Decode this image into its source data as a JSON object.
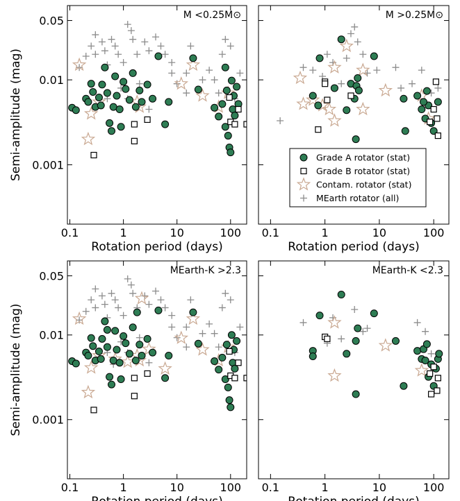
{
  "chart_data": [
    {
      "type": "scatter",
      "annotation": "M <0.25M⊙",
      "xlabel": "Rotation period (days)",
      "ylabel": "Semi-amplitude (mag)",
      "xscale": "log",
      "yscale": "log",
      "xlim": [
        0.09,
        200
      ],
      "ylim": [
        0.0002,
        0.075
      ],
      "xticks": [
        0.1,
        1,
        10,
        100
      ],
      "yticks": [
        0.001,
        0.01,
        0.05
      ],
      "ytick_labels": true,
      "series": [
        {
          "marker": "circle",
          "color": "#2e7d54",
          "x": [
            0.11,
            0.13,
            0.2,
            0.22,
            0.25,
            0.27,
            0.3,
            0.35,
            0.38,
            0.4,
            0.45,
            0.5,
            0.55,
            0.6,
            0.65,
            0.7,
            0.75,
            0.85,
            0.9,
            1.0,
            1.1,
            1.3,
            1.5,
            1.7,
            2,
            2.2,
            2.8,
            3.5,
            4.5,
            6,
            7,
            20,
            25,
            50,
            60,
            70,
            80,
            85,
            90,
            95,
            100,
            105,
            110,
            115,
            120,
            130,
            140,
            80
          ],
          "values": [
            0.0047,
            0.0044,
            0.006,
            0.0055,
            0.009,
            0.0072,
            0.0048,
            0.0062,
            0.005,
            0.0088,
            0.014,
            0.007,
            0.0031,
            0.0025,
            0.0048,
            0.011,
            0.0065,
            0.0045,
            0.0028,
            0.0095,
            0.0078,
            0.0058,
            0.012,
            0.0048,
            0.0075,
            0.0055,
            0.0088,
            0.006,
            0.019,
            0.003,
            0.0055,
            0.018,
            0.0077,
            0.0047,
            0.0037,
            0.0052,
            0.0028,
            0.0075,
            0.0022,
            0.0016,
            0.0014,
            0.0098,
            0.0045,
            0.0065,
            0.0038,
            0.0083,
            0.0052,
            0.014
          ]
        },
        {
          "marker": "square",
          "color": "#000000",
          "x": [
            0.28,
            1.6,
            1.6,
            2.8,
            95,
            100,
            120,
            140,
            200
          ],
          "values": [
            0.0013,
            0.0019,
            0.003,
            0.0034,
            0.0062,
            0.0032,
            0.003,
            0.0045,
            0.003
          ]
        },
        {
          "marker": "star",
          "color": "#c9a891",
          "x": [
            0.15,
            0.22,
            0.25,
            0.35,
            1.8,
            2,
            12,
            20,
            30,
            60,
            90
          ],
          "values": [
            0.015,
            0.002,
            0.004,
            0.0055,
            0.0055,
            0.0048,
            0.009,
            0.015,
            0.0065,
            0.0048,
            0.007
          ]
        },
        {
          "marker": "plus",
          "color": "#8c8c8c",
          "x": [
            0.15,
            0.2,
            0.25,
            0.3,
            0.3,
            0.4,
            0.45,
            0.5,
            0.6,
            0.7,
            0.8,
            1,
            1.2,
            1.4,
            1.5,
            1.8,
            2.5,
            3,
            4,
            5,
            6,
            8,
            10,
            15,
            18,
            30,
            40,
            50,
            70,
            80,
            100,
            0.5,
            0.9,
            1.2,
            2,
            3,
            8,
            15,
            60,
            120,
            150
          ],
          "values": [
            0.014,
            0.019,
            0.025,
            0.02,
            0.034,
            0.028,
            0.022,
            0.015,
            0.03,
            0.025,
            0.02,
            0.016,
            0.045,
            0.038,
            0.03,
            0.02,
            0.028,
            0.022,
            0.032,
            0.025,
            0.02,
            0.016,
            0.009,
            0.012,
            0.025,
            0.01,
            0.013,
            0.01,
            0.02,
            0.03,
            0.025,
            0.006,
            0.008,
            0.006,
            0.009,
            0.0045,
            0.012,
            0.007,
            0.007,
            0.006,
            0.012
          ]
        }
      ]
    },
    {
      "type": "scatter",
      "annotation": "M >0.25M⊙",
      "xlabel": "Rotation period (days)",
      "xscale": "log",
      "yscale": "log",
      "xlim": [
        0.06,
        190
      ],
      "ylim": [
        0.0002,
        0.075
      ],
      "xticks": [
        0.1,
        1,
        10,
        100
      ],
      "yticks": [
        0.001,
        0.01,
        0.05
      ],
      "ytick_labels": false,
      "legend": "lower right",
      "series": [
        {
          "name": "Grade A rotator (stat)",
          "marker": "circle",
          "color": "#2e7d54",
          "x": [
            0.6,
            0.75,
            0.8,
            1.5,
            2,
            2.5,
            3,
            3.5,
            3.8,
            4,
            4.2,
            3.7,
            8,
            28,
            30,
            50,
            60,
            70,
            80,
            90,
            100,
            120,
            75,
            65
          ],
          "values": [
            0.0065,
            0.005,
            0.018,
            0.008,
            0.03,
            0.0044,
            0.009,
            0.006,
            0.0085,
            0.0105,
            0.0075,
            0.002,
            0.019,
            0.006,
            0.0025,
            0.0065,
            0.0045,
            0.0035,
            0.005,
            0.0031,
            0.0025,
            0.0055,
            0.0074,
            0.0055
          ]
        },
        {
          "name": "Grade B rotator (stat)",
          "marker": "square",
          "color": "#000000",
          "x": [
            0.75,
            1,
            1.1,
            1,
            3,
            100,
            110,
            120,
            85,
            115
          ],
          "values": [
            0.0026,
            0.0095,
            0.0058,
            0.009,
            0.0065,
            0.0045,
            0.0095,
            0.0022,
            0.0032,
            0.0035
          ]
        },
        {
          "name": "Contam. rotator (stat)",
          "marker": "star",
          "color": "#c9a891",
          "x": [
            0.35,
            0.4,
            0.6,
            0.9,
            1.2,
            1.5,
            1.5,
            2.5,
            5,
            5,
            13,
            60,
            80
          ],
          "values": [
            0.0105,
            0.0052,
            0.0058,
            0.005,
            0.0045,
            0.0033,
            0.014,
            0.025,
            0.013,
            0.0045,
            0.0075,
            0.0065,
            0.0035
          ]
        },
        {
          "name": "MEarth rotator (all)",
          "marker": "plus",
          "color": "#8c8c8c",
          "x": [
            0.15,
            0.4,
            0.6,
            0.9,
            1.1,
            1.4,
            2,
            2.5,
            3,
            3.5,
            4,
            5,
            6,
            9,
            20,
            25,
            40,
            60,
            90,
            120
          ],
          "values": [
            0.0033,
            0.014,
            0.013,
            0.011,
            0.02,
            0.016,
            0.009,
            0.018,
            0.035,
            0.042,
            0.028,
            0.02,
            0.012,
            0.013,
            0.014,
            0.008,
            0.009,
            0.013,
            0.007,
            0.008
          ]
        }
      ]
    },
    {
      "type": "scatter",
      "annotation": "MEarth-K >2.3",
      "xlabel": "Rotation period (days)",
      "ylabel": "Semi-amplitude (mag)",
      "xscale": "log",
      "yscale": "log",
      "xlim": [
        0.09,
        200
      ],
      "ylim": [
        0.0002,
        0.075
      ],
      "xticks": [
        0.1,
        1,
        10,
        100
      ],
      "yticks": [
        0.001,
        0.01,
        0.05
      ],
      "ytick_labels": true,
      "series": [
        {
          "marker": "circle",
          "color": "#2e7d54",
          "x": [
            0.11,
            0.13,
            0.2,
            0.22,
            0.25,
            0.27,
            0.3,
            0.35,
            0.38,
            0.4,
            0.45,
            0.5,
            0.55,
            0.6,
            0.65,
            0.7,
            0.75,
            0.85,
            0.9,
            1.0,
            1.1,
            1.3,
            1.5,
            1.7,
            2,
            2.2,
            2.8,
            3.5,
            4.5,
            6,
            7,
            20,
            25,
            50,
            60,
            70,
            80,
            85,
            90,
            95,
            100,
            105,
            110,
            115,
            120,
            130,
            0.5,
            1.8
          ],
          "values": [
            0.0049,
            0.0046,
            0.0062,
            0.0057,
            0.0092,
            0.0074,
            0.005,
            0.0064,
            0.0052,
            0.009,
            0.0145,
            0.0072,
            0.0032,
            0.0026,
            0.005,
            0.0112,
            0.0067,
            0.0047,
            0.003,
            0.0097,
            0.008,
            0.006,
            0.0123,
            0.005,
            0.0077,
            0.0057,
            0.009,
            0.0062,
            0.0195,
            0.0031,
            0.0057,
            0.0185,
            0.0079,
            0.0049,
            0.0039,
            0.0054,
            0.003,
            0.0077,
            0.0024,
            0.0017,
            0.0014,
            0.01,
            0.0047,
            0.0067,
            0.004,
            0.0085,
            0.0115,
            0.0185
          ]
        },
        {
          "marker": "square",
          "color": "#000000",
          "x": [
            0.28,
            1.6,
            1.6,
            2.8,
            95,
            100,
            120,
            140,
            200
          ],
          "values": [
            0.0013,
            0.0019,
            0.0031,
            0.0035,
            0.0064,
            0.0033,
            0.0031,
            0.0047,
            0.0031
          ]
        },
        {
          "marker": "star",
          "color": "#c9a891",
          "x": [
            0.15,
            0.22,
            0.25,
            0.35,
            0.7,
            1.2,
            1.8,
            2,
            2.2,
            3,
            6,
            12,
            20,
            30,
            60,
            90
          ],
          "values": [
            0.0155,
            0.0021,
            0.0041,
            0.0057,
            0.0052,
            0.0048,
            0.0057,
            0.005,
            0.027,
            0.0068,
            0.004,
            0.0092,
            0.0155,
            0.0067,
            0.005,
            0.0072
          ]
        },
        {
          "marker": "plus",
          "color": "#8c8c8c",
          "x": [
            0.15,
            0.2,
            0.25,
            0.3,
            0.3,
            0.4,
            0.45,
            0.5,
            0.6,
            0.7,
            0.8,
            1,
            1.2,
            1.4,
            1.5,
            1.8,
            2.5,
            3,
            4,
            5,
            6,
            8,
            10,
            15,
            18,
            30,
            40,
            50,
            70,
            80,
            100,
            0.5,
            0.9,
            1.2,
            2,
            3,
            8,
            15,
            60,
            120,
            150,
            0.35,
            0.65
          ],
          "values": [
            0.015,
            0.019,
            0.026,
            0.021,
            0.035,
            0.029,
            0.023,
            0.016,
            0.031,
            0.026,
            0.021,
            0.017,
            0.046,
            0.039,
            0.031,
            0.021,
            0.029,
            0.023,
            0.033,
            0.026,
            0.021,
            0.017,
            0.0093,
            0.0124,
            0.026,
            0.0104,
            0.0135,
            0.0104,
            0.021,
            0.031,
            0.026,
            0.0062,
            0.0083,
            0.0062,
            0.0093,
            0.0047,
            0.0124,
            0.0072,
            0.0072,
            0.0062,
            0.0124,
            0.0055,
            0.0045
          ]
        }
      ]
    },
    {
      "type": "scatter",
      "annotation": "MEarth-K <2.3",
      "xlabel": "Rotation period (days)",
      "xscale": "log",
      "yscale": "log",
      "xlim": [
        0.06,
        190
      ],
      "ylim": [
        0.0002,
        0.075
      ],
      "xticks": [
        0.1,
        1,
        10,
        100
      ],
      "yticks": [
        0.001,
        0.01,
        0.05
      ],
      "ytick_labels": false,
      "series": [
        {
          "marker": "circle",
          "color": "#2e7d54",
          "x": [
            0.6,
            0.6,
            0.8,
            2,
            2.5,
            3.7,
            3.7,
            4,
            8,
            20,
            28,
            50,
            60,
            65,
            70,
            75,
            80,
            90,
            100,
            120,
            125,
            110
          ],
          "values": [
            0.0065,
            0.0056,
            0.017,
            0.03,
            0.006,
            0.0085,
            0.002,
            0.012,
            0.018,
            0.0085,
            0.0025,
            0.0065,
            0.0052,
            0.0068,
            0.005,
            0.0078,
            0.0032,
            0.0045,
            0.0025,
            0.0052,
            0.006,
            0.004
          ]
        },
        {
          "marker": "square",
          "color": "#000000",
          "x": [
            1,
            1.1,
            85,
            100,
            115,
            120,
            90
          ],
          "values": [
            0.0095,
            0.009,
            0.0035,
            0.0042,
            0.0022,
            0.0031,
            0.002
          ]
        },
        {
          "marker": "star",
          "color": "#c9a891",
          "x": [
            1.5,
            1.5,
            13,
            60
          ],
          "values": [
            0.014,
            0.0033,
            0.0075,
            0.0038
          ]
        },
        {
          "marker": "plus",
          "color": "#8c8c8c",
          "x": [
            0.4,
            1.1,
            1.4,
            2,
            3.5,
            5,
            6,
            50,
            70,
            90
          ],
          "values": [
            0.014,
            0.008,
            0.016,
            0.009,
            0.02,
            0.011,
            0.012,
            0.014,
            0.011,
            0.006
          ]
        }
      ]
    }
  ]
}
